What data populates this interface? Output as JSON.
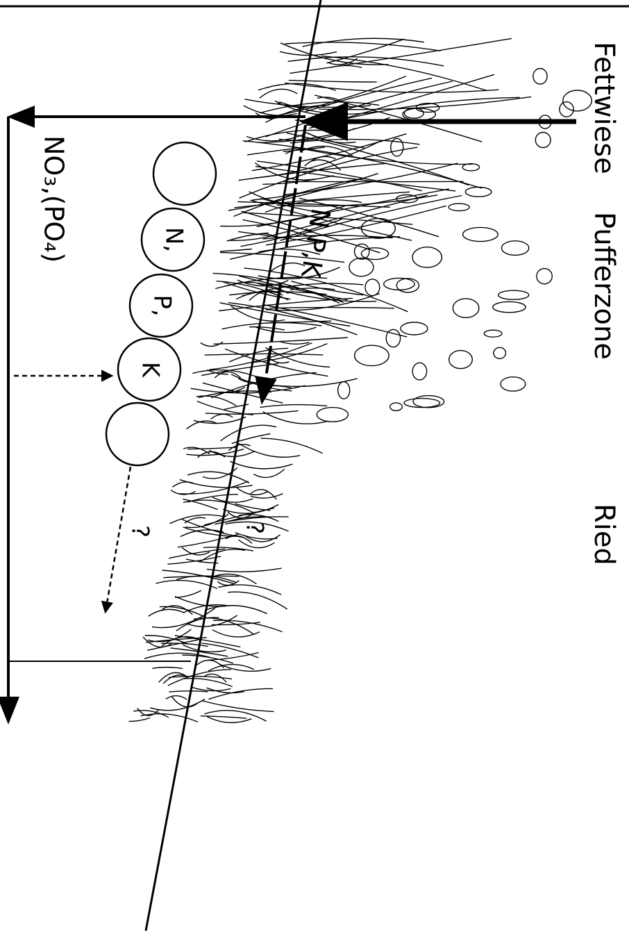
{
  "zones": [
    "Fettwiese",
    "Pufferzone",
    "Ried"
  ],
  "flow": {
    "label": "N,P,K"
  },
  "cycle": {
    "labels": [
      "N,",
      "P,",
      "K"
    ]
  },
  "questions": [
    "?",
    "?"
  ],
  "leaching": {
    "label": "NO₃,(PO₄)"
  }
}
